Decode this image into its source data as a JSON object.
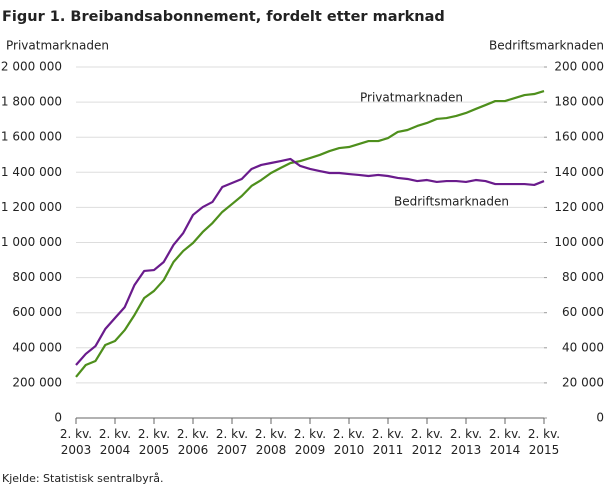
{
  "chart_data": {
    "type": "line",
    "title": "Figur 1. Breibandsabonnement, fordelt etter marknad",
    "y_label": "Privatmarknaden",
    "y2_label": "Bedriftsmarknaden",
    "source": "Kjelde: Statistisk sentralbyrå.",
    "categories": [
      "2. kv. 2003",
      null,
      null,
      null,
      "2. kv. 2004",
      null,
      null,
      null,
      "2. kv. 2005",
      null,
      null,
      null,
      "2. kv. 2006",
      null,
      null,
      null,
      "2. kv. 2007",
      null,
      null,
      null,
      "2. kv. 2008",
      null,
      null,
      null,
      "2. kv. 2009",
      null,
      null,
      null,
      "2. kv. 2010",
      null,
      null,
      null,
      "2. kv. 2011",
      null,
      null,
      null,
      "2. kv. 2012",
      null,
      null,
      null,
      "2. kv. 2013",
      null,
      null,
      null,
      "2. kv. 2014",
      null,
      null,
      null,
      "2. kv. 2015"
    ],
    "series": [
      {
        "name": "Privatmarknaden",
        "color": "#4e8f1c",
        "axis": "y",
        "values": [
          234000,
          302000,
          325000,
          416000,
          439000,
          501000,
          587000,
          684000,
          724000,
          786000,
          889000,
          952000,
          997000,
          1060000,
          1111000,
          1174000,
          1219000,
          1265000,
          1322000,
          1356000,
          1396000,
          1425000,
          1453000,
          1464000,
          1481000,
          1499000,
          1521000,
          1538000,
          1544000,
          1561000,
          1578000,
          1578000,
          1595000,
          1630000,
          1641000,
          1664000,
          1681000,
          1704000,
          1709000,
          1721000,
          1738000,
          1761000,
          1783000,
          1806000,
          1806000,
          1823000,
          1840000,
          1846000,
          1863000
        ]
      },
      {
        "name": "Bedriftsmarknaden",
        "color": "#6a1b8c",
        "axis": "y2",
        "values": [
          30200,
          36500,
          41000,
          50700,
          57000,
          63200,
          75800,
          83800,
          84300,
          88900,
          98600,
          105400,
          115700,
          120200,
          123100,
          131600,
          133900,
          136200,
          141900,
          144200,
          145300,
          146400,
          147600,
          143600,
          141900,
          140700,
          139600,
          139600,
          139000,
          138500,
          137900,
          138500,
          137900,
          136800,
          136200,
          135000,
          135600,
          134500,
          135000,
          135000,
          134500,
          135600,
          135000,
          133300,
          133300,
          133300,
          133300,
          132800,
          135000
        ]
      }
    ],
    "ylim": [
      0,
      2000000
    ],
    "yticks": [
      0,
      {
        "value": 200000,
        "label": "200 000"
      },
      {
        "value": 400000,
        "label": "400 000"
      },
      {
        "value": 600000,
        "label": "600 000"
      },
      {
        "value": 800000,
        "label": "800 000"
      },
      {
        "value": 1000000,
        "label": "1 000 000"
      },
      {
        "value": 1200000,
        "label": "1 200 000"
      },
      {
        "value": 1400000,
        "label": "1 400 000"
      },
      {
        "value": 1600000,
        "label": "1 600 000"
      },
      {
        "value": 1800000,
        "label": "1 800 000"
      },
      {
        "value": 2000000,
        "label": "2 000 000"
      }
    ],
    "y2lim": [
      0,
      200000
    ],
    "y2ticks": [
      0,
      {
        "value": 20000,
        "label": "20 000"
      },
      {
        "value": 40000,
        "label": "40 000"
      },
      {
        "value": 60000,
        "label": "60 000"
      },
      {
        "value": 80000,
        "label": "80 000"
      },
      {
        "value": 100000,
        "label": "100 000"
      },
      {
        "value": 120000,
        "label": "120 000"
      },
      {
        "value": 140000,
        "label": "140 000"
      },
      {
        "value": 160000,
        "label": "160 000"
      },
      {
        "value": 180000,
        "label": "180 000"
      },
      {
        "value": 200000,
        "label": "200 000"
      }
    ],
    "grid": true
  }
}
